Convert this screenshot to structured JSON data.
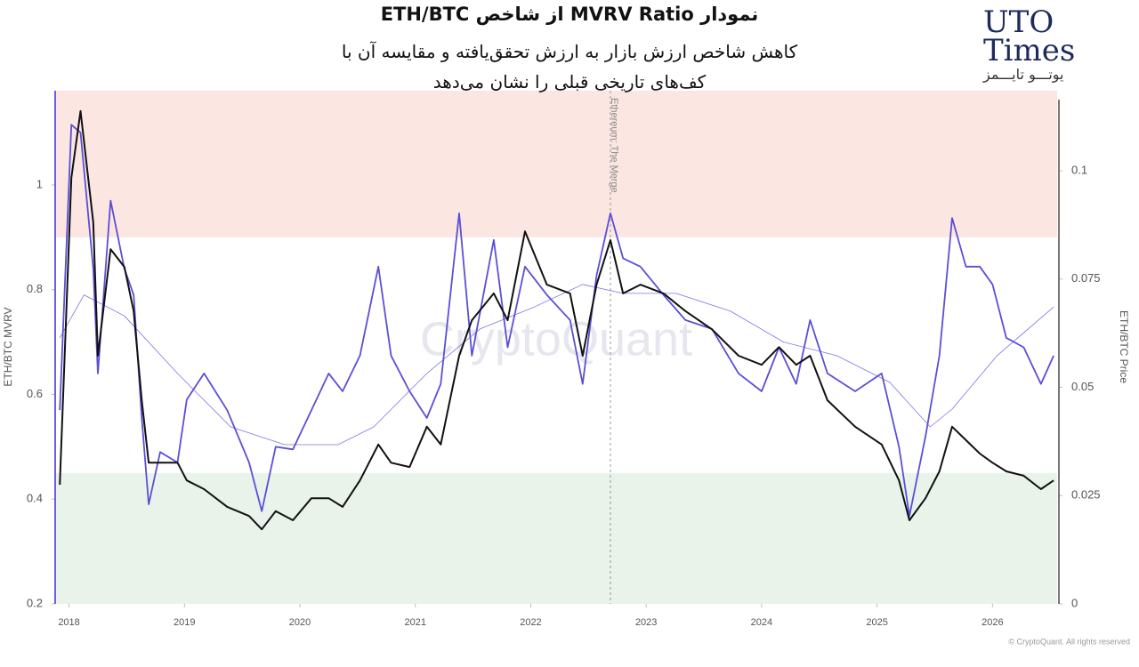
{
  "logo": {
    "line1": "UTO",
    "line2": "Times",
    "line3": "یوتـــو تایـــمز"
  },
  "chart_data": {
    "type": "line",
    "title": "نمودار MVRV Ratio از شاخص ETH/BTC",
    "subtitle": [
      "کاهش شاخص ارزش بازار به ارزش تحقق‌یافته و مقایسه آن با",
      "کف‌های تاریخی قبلی را نشان می‌دهد"
    ],
    "y_label": "ETH/BTC MVRV",
    "y2_label": "ETH/BTC Price",
    "watermark": "CryptoQuant",
    "source": "© CryptoQuant. All rights reserved",
    "annotation": {
      "text": "Ethereum: The Merge",
      "x": 2022.69
    },
    "xlim": [
      2017.88,
      2026.56
    ],
    "xticks": [
      2018,
      2019,
      2020,
      2021,
      2022,
      2023,
      2024,
      2025,
      2026
    ],
    "ylim": [
      0.2,
      1.18
    ],
    "yticks": [
      0.2,
      0.4,
      0.6,
      0.8,
      1
    ],
    "y2lim": [
      0,
      0.1185
    ],
    "y2ticks": [
      0,
      0.025,
      0.05,
      0.075,
      0.1
    ],
    "bands": [
      {
        "from": 0.9,
        "to": 1.18,
        "color": "#fbe6e2"
      },
      {
        "from": 0.2,
        "to": 0.45,
        "color": "#e9f3ea"
      }
    ],
    "x": [
      2017.92,
      2018.02,
      2018.1,
      2018.21,
      2018.25,
      2018.36,
      2018.48,
      2018.56,
      2018.63,
      2018.69,
      2018.79,
      2018.94,
      2019.02,
      2019.17,
      2019.37,
      2019.56,
      2019.67,
      2019.79,
      2019.94,
      2020.1,
      2020.25,
      2020.37,
      2020.52,
      2020.68,
      2020.79,
      2020.95,
      2021.1,
      2021.22,
      2021.38,
      2021.49,
      2021.68,
      2021.8,
      2021.95,
      2022.14,
      2022.34,
      2022.45,
      2022.57,
      2022.69,
      2022.8,
      2022.95,
      2023.15,
      2023.34,
      2023.57,
      2023.8,
      2024.0,
      2024.15,
      2024.3,
      2024.42,
      2024.57,
      2024.81,
      2025.04,
      2025.19,
      2025.28,
      2025.42,
      2025.54,
      2025.65,
      2025.77,
      2025.89,
      2026.0,
      2026.12,
      2026.27,
      2026.42,
      2026.53
    ],
    "series": [
      {
        "color": "#5b4fd6",
        "line_width": 1.8,
        "values": [
          0.57,
          1.115,
          1.1,
          0.84,
          0.64,
          0.97,
          0.84,
          0.79,
          0.555,
          0.39,
          0.49,
          0.47,
          0.59,
          0.64,
          0.57,
          0.47,
          0.377,
          0.5,
          0.495,
          0.57,
          0.64,
          0.606,
          0.674,
          0.844,
          0.674,
          0.606,
          0.555,
          0.62,
          0.946,
          0.674,
          0.895,
          0.69,
          0.844,
          0.79,
          0.742,
          0.62,
          0.827,
          0.946,
          0.86,
          0.844,
          0.79,
          0.742,
          0.725,
          0.64,
          0.606,
          0.69,
          0.62,
          0.742,
          0.64,
          0.606,
          0.64,
          0.5,
          0.368,
          0.52,
          0.674,
          0.937,
          0.844,
          0.844,
          0.81,
          0.708,
          0.69,
          0.62,
          0.674
        ]
      },
      {
        "color": "#111111",
        "line_width": 2,
        "axis": "y2",
        "values": [
          0.0275,
          0.0984,
          0.1138,
          0.0881,
          0.0573,
          0.0819,
          0.0778,
          0.0676,
          0.047,
          0.0326,
          0.0326,
          0.0326,
          0.0285,
          0.0265,
          0.0224,
          0.0203,
          0.0172,
          0.0214,
          0.0193,
          0.0244,
          0.0244,
          0.0224,
          0.0285,
          0.0368,
          0.0326,
          0.0316,
          0.0409,
          0.0368,
          0.0573,
          0.0655,
          0.0717,
          0.0655,
          0.086,
          0.0737,
          0.0717,
          0.0573,
          0.0737,
          0.084,
          0.0717,
          0.0737,
          0.0717,
          0.0676,
          0.0634,
          0.0573,
          0.0552,
          0.0593,
          0.0552,
          0.0573,
          0.047,
          0.0409,
          0.0368,
          0.0285,
          0.0193,
          0.0244,
          0.0306,
          0.0409,
          0.0378,
          0.0347,
          0.0326,
          0.0306,
          0.0296,
          0.0265,
          0.0285
        ]
      },
      {
        "color": "#7d74e8",
        "line_width": 0.8,
        "x": [
          2017.92,
          2018.13,
          2018.48,
          2018.94,
          2019.4,
          2019.87,
          2020.33,
          2020.64,
          2021.1,
          2021.56,
          2022.03,
          2022.45,
          2022.8,
          2023.26,
          2023.73,
          2024.19,
          2024.65,
          2025.11,
          2025.46,
          2025.65,
          2026.04,
          2026.53
        ],
        "values": [
          0.708,
          0.79,
          0.75,
          0.64,
          0.538,
          0.504,
          0.504,
          0.538,
          0.64,
          0.725,
          0.767,
          0.81,
          0.793,
          0.793,
          0.759,
          0.7,
          0.674,
          0.623,
          0.538,
          0.572,
          0.674,
          0.767
        ]
      }
    ]
  }
}
